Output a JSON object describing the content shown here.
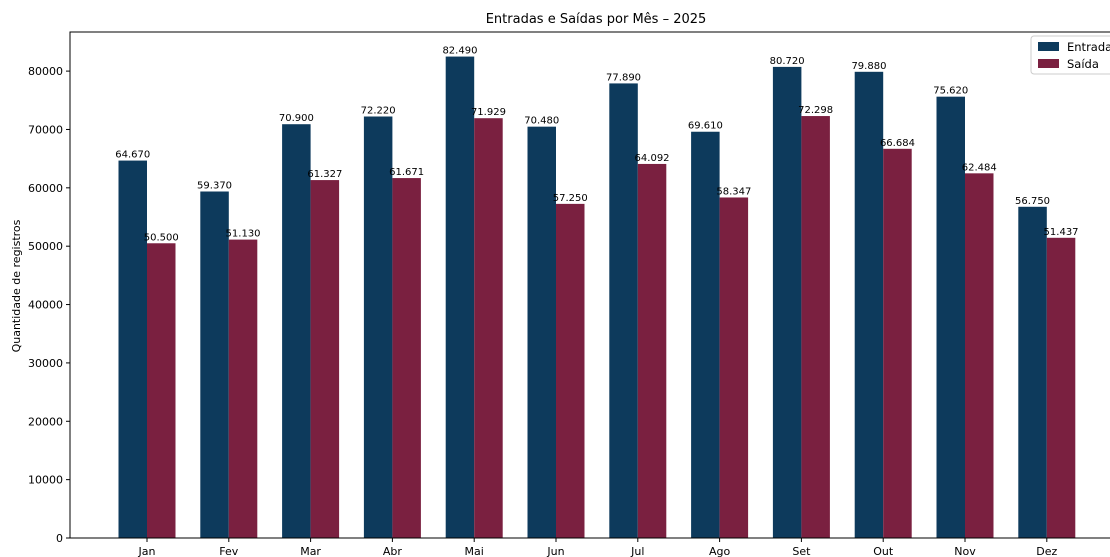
{
  "chart_data": {
    "type": "bar",
    "title": "Entradas e Saídas por Mês – 2025",
    "xlabel": "",
    "ylabel": "Quantidade de registros",
    "ylim": [
      0,
      86700
    ],
    "yticks": [
      0,
      10000,
      20000,
      30000,
      40000,
      50000,
      60000,
      70000,
      80000
    ],
    "grid": false,
    "legend_position": "top-right",
    "categories": [
      "Jan",
      "Fev",
      "Mar",
      "Abr",
      "Mai",
      "Jun",
      "Jul",
      "Ago",
      "Set",
      "Out",
      "Nov",
      "Dez"
    ],
    "series": [
      {
        "name": "Entrada",
        "color": "#0d3a5c",
        "values": [
          64670,
          59370,
          70900,
          72220,
          82490,
          70480,
          77890,
          69610,
          80720,
          79880,
          75620,
          56750
        ],
        "labels": [
          "64.670",
          "59.370",
          "70.900",
          "72.220",
          "82.490",
          "70.480",
          "77.890",
          "69.610",
          "80.720",
          "79.880",
          "75.620",
          "56.750"
        ]
      },
      {
        "name": "Saída",
        "color": "#7a2040",
        "values": [
          50500,
          51130,
          61327,
          61671,
          71929,
          57250,
          64092,
          58347,
          72298,
          66684,
          62484,
          51437
        ],
        "labels": [
          "50.500",
          "51.130",
          "61.327",
          "61.671",
          "71.929",
          "57.250",
          "64.092",
          "58.347",
          "72.298",
          "66.684",
          "62.484",
          "51.437"
        ]
      }
    ]
  }
}
